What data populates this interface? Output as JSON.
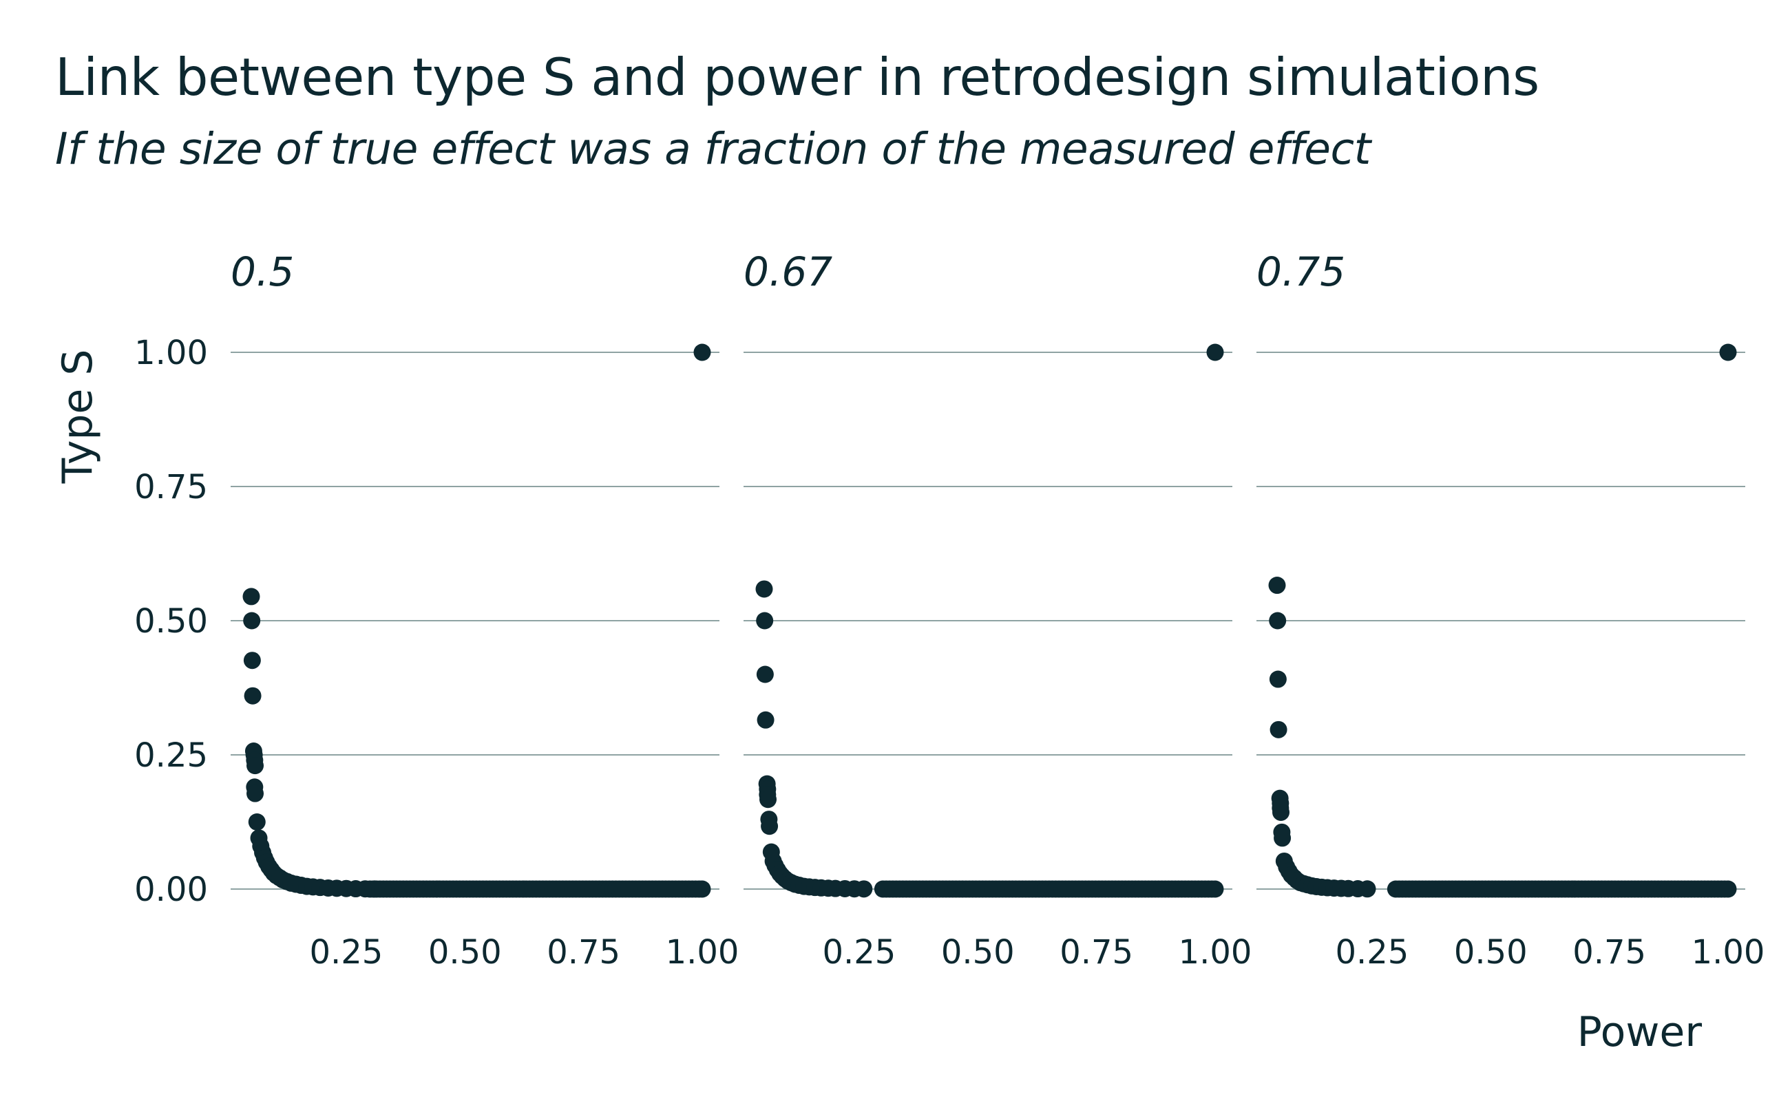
{
  "chart_data": {
    "type": "scatter",
    "title": "Link between type S and power in retrodesign simulations",
    "subtitle": "If the size of true effect was a fraction of the measured effect",
    "xlabel": "Power",
    "ylabel": "Type S",
    "xlim": [
      0.05,
      1.0
    ],
    "ylim": [
      0,
      1
    ],
    "x_ticks": [
      0.25,
      0.5,
      0.75,
      1.0
    ],
    "x_tick_labels": [
      "0.25",
      "0.50",
      "0.75",
      "1.00"
    ],
    "y_ticks": [
      0,
      0.25,
      0.5,
      0.75,
      1.0
    ],
    "y_tick_labels": [
      "0.00",
      "0.25",
      "0.50",
      "0.75",
      "1.00"
    ],
    "grid": "horizontal",
    "point_color": "#0d2830",
    "facets": [
      {
        "label": "0.5",
        "points": [
          {
            "x": 0.05,
            "y": 0.545
          },
          {
            "x": 0.051,
            "y": 0.5
          },
          {
            "x": 0.052,
            "y": 0.426
          },
          {
            "x": 0.053,
            "y": 0.36
          },
          {
            "x": 0.055,
            "y": 0.257
          },
          {
            "x": 0.056,
            "y": 0.25
          },
          {
            "x": 0.057,
            "y": 0.24
          },
          {
            "x": 0.058,
            "y": 0.23
          },
          {
            "x": 0.057,
            "y": 0.19
          },
          {
            "x": 0.058,
            "y": 0.178
          },
          {
            "x": 0.062,
            "y": 0.125
          },
          {
            "x": 0.066,
            "y": 0.095
          },
          {
            "x": 0.07,
            "y": 0.08
          },
          {
            "x": 0.074,
            "y": 0.068
          },
          {
            "x": 0.078,
            "y": 0.058
          },
          {
            "x": 0.082,
            "y": 0.05
          },
          {
            "x": 0.087,
            "y": 0.042
          },
          {
            "x": 0.092,
            "y": 0.036
          },
          {
            "x": 0.097,
            "y": 0.03
          },
          {
            "x": 0.103,
            "y": 0.025
          },
          {
            "x": 0.11,
            "y": 0.021
          },
          {
            "x": 0.117,
            "y": 0.017
          },
          {
            "x": 0.125,
            "y": 0.014
          },
          {
            "x": 0.134,
            "y": 0.011
          },
          {
            "x": 0.144,
            "y": 0.009
          },
          {
            "x": 0.155,
            "y": 0.007
          },
          {
            "x": 0.167,
            "y": 0.005
          },
          {
            "x": 0.18,
            "y": 0.004
          },
          {
            "x": 0.195,
            "y": 0.003
          },
          {
            "x": 0.212,
            "y": 0.002
          },
          {
            "x": 0.23,
            "y": 0.0015
          },
          {
            "x": 0.25,
            "y": 0.001
          },
          {
            "x": 0.27,
            "y": 0.0006
          },
          {
            "x": 0.29,
            "y": 0.0004
          },
          {
            "x": 0.31,
            "y": 0.0002
          },
          {
            "x": 1.0,
            "y": 1.0
          }
        ]
      },
      {
        "label": "0.67",
        "points": [
          {
            "x": 0.05,
            "y": 0.559
          },
          {
            "x": 0.051,
            "y": 0.5
          },
          {
            "x": 0.052,
            "y": 0.4
          },
          {
            "x": 0.053,
            "y": 0.315
          },
          {
            "x": 0.056,
            "y": 0.196
          },
          {
            "x": 0.057,
            "y": 0.186
          },
          {
            "x": 0.057,
            "y": 0.176
          },
          {
            "x": 0.058,
            "y": 0.167
          },
          {
            "x": 0.06,
            "y": 0.13
          },
          {
            "x": 0.061,
            "y": 0.117
          },
          {
            "x": 0.065,
            "y": 0.069
          },
          {
            "x": 0.069,
            "y": 0.052
          },
          {
            "x": 0.073,
            "y": 0.044
          },
          {
            "x": 0.078,
            "y": 0.036
          },
          {
            "x": 0.083,
            "y": 0.029
          },
          {
            "x": 0.088,
            "y": 0.024
          },
          {
            "x": 0.094,
            "y": 0.019
          },
          {
            "x": 0.1,
            "y": 0.015
          },
          {
            "x": 0.107,
            "y": 0.012
          },
          {
            "x": 0.115,
            "y": 0.009
          },
          {
            "x": 0.124,
            "y": 0.007
          },
          {
            "x": 0.134,
            "y": 0.005
          },
          {
            "x": 0.145,
            "y": 0.004
          },
          {
            "x": 0.157,
            "y": 0.003
          },
          {
            "x": 0.17,
            "y": 0.0022
          },
          {
            "x": 0.185,
            "y": 0.0016
          },
          {
            "x": 0.2,
            "y": 0.0011
          },
          {
            "x": 0.22,
            "y": 0.0007
          },
          {
            "x": 0.24,
            "y": 0.0004
          },
          {
            "x": 0.26,
            "y": 0.0002
          },
          {
            "x": 1.0,
            "y": 1.0
          }
        ]
      },
      {
        "label": "0.75",
        "points": [
          {
            "x": 0.05,
            "y": 0.566
          },
          {
            "x": 0.051,
            "y": 0.5
          },
          {
            "x": 0.052,
            "y": 0.391
          },
          {
            "x": 0.053,
            "y": 0.297
          },
          {
            "x": 0.056,
            "y": 0.169
          },
          {
            "x": 0.057,
            "y": 0.16
          },
          {
            "x": 0.057,
            "y": 0.151
          },
          {
            "x": 0.058,
            "y": 0.143
          },
          {
            "x": 0.06,
            "y": 0.106
          },
          {
            "x": 0.061,
            "y": 0.095
          },
          {
            "x": 0.065,
            "y": 0.052
          },
          {
            "x": 0.07,
            "y": 0.041
          },
          {
            "x": 0.075,
            "y": 0.033
          },
          {
            "x": 0.08,
            "y": 0.026
          },
          {
            "x": 0.086,
            "y": 0.021
          },
          {
            "x": 0.092,
            "y": 0.016
          },
          {
            "x": 0.099,
            "y": 0.012
          },
          {
            "x": 0.106,
            "y": 0.01
          },
          {
            "x": 0.114,
            "y": 0.008
          },
          {
            "x": 0.123,
            "y": 0.006
          },
          {
            "x": 0.133,
            "y": 0.0045
          },
          {
            "x": 0.144,
            "y": 0.0034
          },
          {
            "x": 0.156,
            "y": 0.0025
          },
          {
            "x": 0.17,
            "y": 0.0018
          },
          {
            "x": 0.185,
            "y": 0.0013
          },
          {
            "x": 0.2,
            "y": 0.0009
          },
          {
            "x": 0.22,
            "y": 0.0006
          },
          {
            "x": 0.24,
            "y": 0.0003
          },
          {
            "x": 1.0,
            "y": 1.0
          }
        ]
      }
    ]
  }
}
